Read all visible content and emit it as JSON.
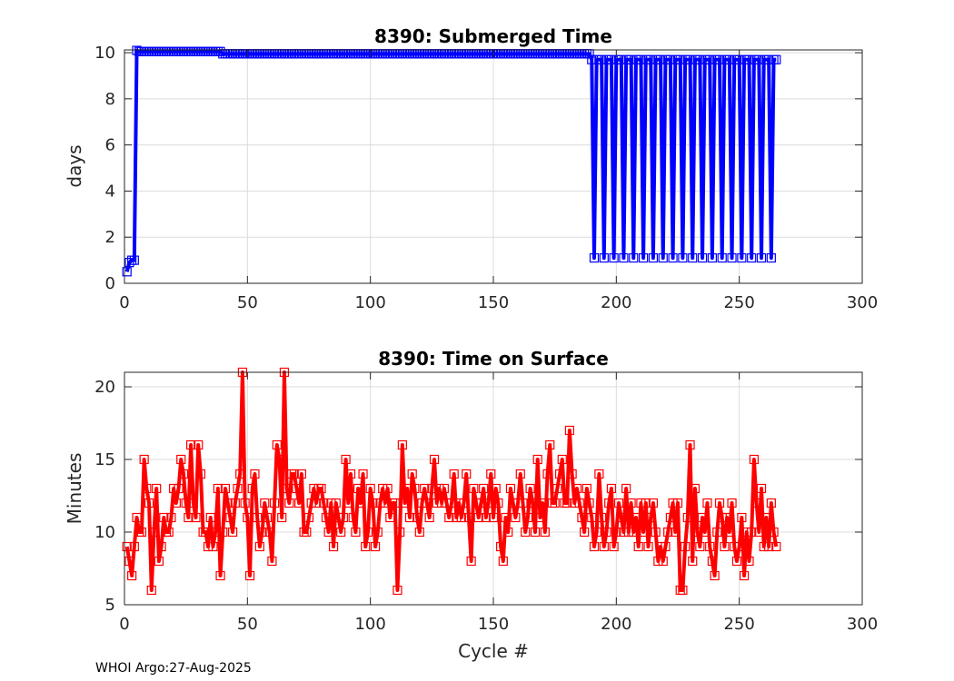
{
  "footer": "WHOI Argo:27-Aug-2025",
  "chart_data": [
    {
      "type": "line",
      "title": "8390: Submerged Time",
      "xlabel": "",
      "ylabel": "days",
      "xlim": [
        0,
        300
      ],
      "ylim": [
        0,
        10.12
      ],
      "xticks": [
        "0",
        "50",
        "100",
        "150",
        "200",
        "250",
        "300"
      ],
      "yticks": [
        "0",
        "2",
        "4",
        "6",
        "8",
        "10"
      ],
      "grid": true,
      "color": "#0000ff",
      "marker": "square",
      "x_start": 1,
      "values": [
        0.5,
        0.9,
        1.0,
        1.0,
        10.1,
        10.05,
        10.05,
        10.05,
        10.05,
        10.05,
        10.05,
        10.05,
        10.05,
        10.05,
        10.05,
        10.05,
        10.05,
        10.05,
        10.05,
        10.05,
        10.05,
        10.05,
        10.05,
        10.05,
        10.05,
        10.05,
        10.05,
        10.05,
        10.05,
        10.05,
        10.05,
        10.05,
        10.05,
        10.05,
        10.05,
        10.05,
        10.05,
        10.05,
        10.05,
        9.95,
        9.95,
        9.95,
        9.95,
        9.95,
        9.95,
        9.95,
        9.95,
        9.95,
        9.95,
        9.95,
        9.95,
        9.95,
        9.95,
        9.95,
        9.95,
        9.95,
        9.95,
        9.95,
        9.95,
        9.95,
        9.95,
        9.95,
        9.95,
        9.95,
        9.95,
        9.95,
        9.95,
        9.95,
        9.95,
        9.95,
        9.95,
        9.95,
        9.95,
        9.95,
        9.95,
        9.95,
        9.95,
        9.95,
        9.95,
        9.95,
        9.95,
        9.95,
        9.95,
        9.95,
        9.95,
        9.95,
        9.95,
        9.95,
        9.95,
        9.95,
        9.95,
        9.95,
        9.95,
        9.95,
        9.95,
        9.95,
        9.95,
        9.95,
        9.95,
        9.95,
        9.95,
        9.95,
        9.95,
        9.95,
        9.95,
        9.95,
        9.95,
        9.95,
        9.95,
        9.95,
        9.95,
        9.95,
        9.95,
        9.95,
        9.95,
        9.95,
        9.95,
        9.95,
        9.95,
        9.95,
        9.95,
        9.95,
        9.95,
        9.95,
        9.95,
        9.95,
        9.95,
        9.95,
        9.95,
        9.95,
        9.95,
        9.95,
        9.95,
        9.95,
        9.95,
        9.95,
        9.95,
        9.95,
        9.95,
        9.95,
        9.95,
        9.95,
        9.95,
        9.95,
        9.95,
        9.95,
        9.95,
        9.95,
        9.95,
        9.95,
        9.95,
        9.95,
        9.95,
        9.95,
        9.95,
        9.95,
        9.95,
        9.95,
        9.95,
        9.95,
        9.95,
        9.95,
        9.95,
        9.95,
        9.95,
        9.95,
        9.95,
        9.95,
        9.95,
        9.95,
        9.95,
        9.95,
        9.95,
        9.95,
        9.95,
        9.95,
        9.95,
        9.95,
        9.95,
        9.95,
        9.95,
        9.95,
        9.95,
        9.95,
        9.95,
        9.95,
        9.95,
        9.95,
        9.95,
        9.7,
        1.1,
        9.7,
        9.7,
        9.7,
        1.1,
        9.7,
        9.7,
        9.7,
        1.1,
        9.7,
        9.7,
        9.7,
        1.1,
        9.7,
        9.7,
        9.7,
        1.1,
        9.7,
        9.7,
        9.7,
        1.1,
        9.7,
        9.7,
        9.7,
        1.1,
        9.7,
        9.7,
        9.7,
        1.1,
        9.7,
        9.7,
        9.7,
        1.1,
        9.7,
        9.7,
        9.7,
        1.1,
        9.7,
        9.7,
        9.7,
        1.1,
        9.7,
        9.7,
        9.7,
        1.1,
        9.7,
        9.7,
        9.7,
        1.1,
        9.7,
        9.7,
        9.7,
        1.1,
        9.7,
        9.7,
        9.7,
        1.1,
        9.7,
        9.7,
        9.7,
        1.1,
        9.7,
        9.7,
        9.7,
        1.1,
        9.7,
        9.7,
        9.7,
        1.1,
        9.7,
        9.7,
        9.7,
        1.1,
        9.7,
        9.7
      ]
    },
    {
      "type": "line",
      "title": "8390: Time on Surface",
      "xlabel": "Cycle #",
      "ylabel": "Minutes",
      "xlim": [
        0,
        300
      ],
      "ylim": [
        5,
        21
      ],
      "xticks": [
        "0",
        "50",
        "100",
        "150",
        "200",
        "250",
        "300"
      ],
      "yticks": [
        "5",
        "10",
        "15",
        "20"
      ],
      "grid": true,
      "color": "#ff0000",
      "marker": "square",
      "x_start": 1,
      "values": [
        9,
        8,
        7,
        9,
        11,
        10,
        10,
        15,
        13,
        12,
        6,
        10,
        13,
        8,
        9,
        11,
        10,
        10,
        11,
        13,
        12,
        13,
        15,
        14,
        12,
        11,
        16,
        12,
        11,
        16,
        14,
        10,
        10,
        9,
        11,
        9,
        10,
        13,
        7,
        10,
        13,
        12,
        11,
        10,
        12,
        13,
        14,
        21,
        12,
        11,
        7,
        13,
        14,
        11,
        9,
        10,
        12,
        11,
        10,
        8,
        12,
        16,
        15,
        11,
        21,
        13,
        12,
        14,
        14,
        13,
        12,
        14,
        10,
        10,
        11,
        12,
        13,
        12,
        13,
        13,
        12,
        11,
        10,
        12,
        9,
        12,
        11,
        10,
        11,
        15,
        12,
        14,
        11,
        10,
        13,
        12,
        14,
        9,
        10,
        13,
        12,
        9,
        10,
        12,
        13,
        12,
        13,
        11,
        12,
        12,
        6,
        10,
        16,
        12,
        13,
        11,
        14,
        13,
        11,
        10,
        12,
        13,
        12,
        11,
        13,
        15,
        12,
        13,
        12,
        13,
        12,
        11,
        12,
        14,
        11,
        12,
        11,
        12,
        14,
        11,
        8,
        13,
        12,
        11,
        12,
        13,
        11,
        12,
        14,
        11,
        13,
        12,
        9,
        8,
        11,
        10,
        13,
        12,
        11,
        12,
        14,
        12,
        10,
        11,
        13,
        12,
        10,
        15,
        11,
        12,
        10,
        14,
        16,
        12,
        12,
        13,
        14,
        15,
        12,
        12,
        17,
        14,
        12,
        13,
        12,
        11,
        10,
        13,
        12,
        11,
        9,
        10,
        14,
        11,
        9,
        10,
        12,
        13,
        9,
        10,
        12,
        11,
        10,
        13,
        10,
        12,
        10,
        11,
        9,
        12,
        10,
        12,
        9,
        11,
        12,
        10,
        8,
        9,
        8,
        9,
        10,
        11,
        12,
        10,
        12,
        6,
        6,
        9,
        11,
        16,
        8,
        13,
        10,
        9,
        11,
        10,
        12,
        9,
        8,
        7,
        10,
        12,
        11,
        9,
        11,
        10,
        12,
        9,
        8,
        9,
        11,
        7,
        10,
        8,
        10,
        15,
        12,
        10,
        13,
        9,
        11,
        9,
        12,
        10,
        9
      ]
    }
  ]
}
